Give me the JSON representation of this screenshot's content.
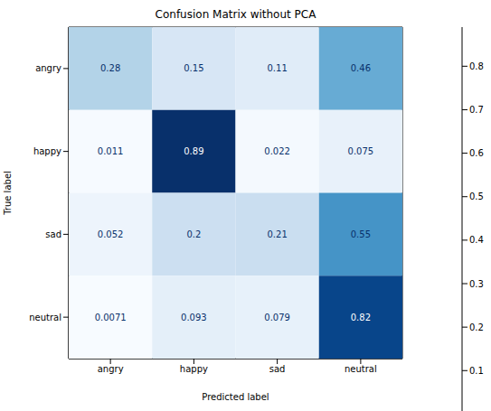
{
  "chart_data": {
    "type": "heatmap",
    "title": "Confusion Matrix without PCA",
    "x_label": "Predicted label",
    "y_label": "True label",
    "categories": [
      "angry",
      "happy",
      "sad",
      "neutral"
    ],
    "y_categories": [
      "angry",
      "happy",
      "sad",
      "neutral"
    ],
    "cells": [
      [
        0.28,
        0.15,
        0.11,
        0.46
      ],
      [
        0.011,
        0.89,
        0.022,
        0.075
      ],
      [
        0.052,
        0.2,
        0.21,
        0.55
      ],
      [
        0.0071,
        0.093,
        0.079,
        0.82
      ]
    ],
    "data_labels": true,
    "color": "Blues",
    "colorbar_range": [
      0.0071,
      0.89
    ],
    "colorbar_ticks": [
      0.1,
      0.2,
      0.3,
      0.4,
      0.5,
      0.6,
      0.7,
      0.8
    ]
  }
}
